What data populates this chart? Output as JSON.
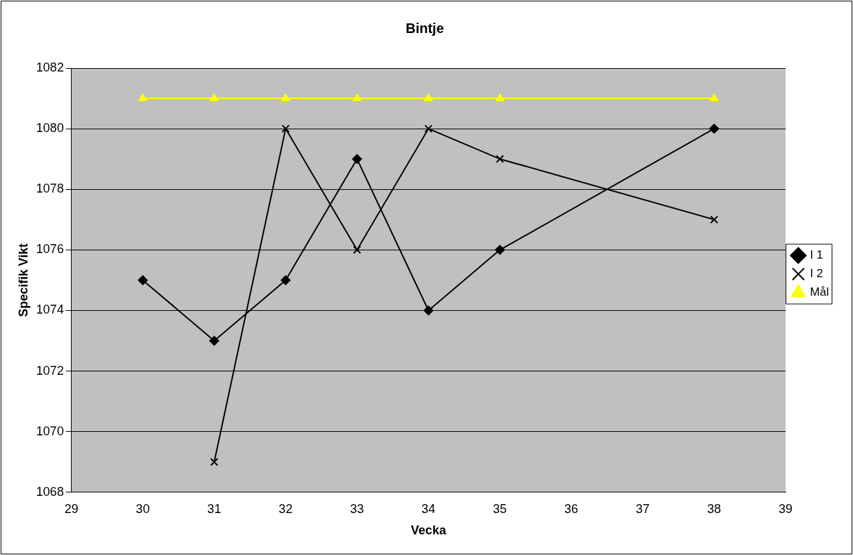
{
  "chart_data": {
    "type": "line",
    "title": "Bintje",
    "xlabel": "Vecka",
    "ylabel": "Specifik Vikt",
    "xlim": [
      29,
      39
    ],
    "xticks": [
      29,
      30,
      31,
      32,
      33,
      34,
      35,
      36,
      37,
      38,
      39
    ],
    "ylim": [
      1068,
      1082
    ],
    "yticks": [
      1068,
      1070,
      1072,
      1074,
      1076,
      1078,
      1080,
      1082
    ],
    "grid": "y",
    "legend": "right",
    "line_style": "solid",
    "series": [
      {
        "name": "I 1",
        "color": "#000000",
        "marker": "diamond",
        "x": [
          30,
          31,
          32,
          33,
          34,
          35,
          38
        ],
        "values": [
          1075,
          1073,
          1075,
          1079,
          1074,
          1076,
          1080
        ]
      },
      {
        "name": "I 2",
        "color": "#000000",
        "marker": "cross",
        "x": [
          31,
          32,
          33,
          34,
          35,
          38
        ],
        "values": [
          1069,
          1080,
          1076,
          1080,
          1079,
          1077
        ]
      },
      {
        "name": "Mål",
        "color": "#ffff00",
        "marker": "triangle",
        "x": [
          30,
          31,
          32,
          33,
          34,
          35,
          38
        ],
        "values": [
          1081,
          1081,
          1081,
          1081,
          1081,
          1081,
          1081
        ]
      }
    ]
  }
}
